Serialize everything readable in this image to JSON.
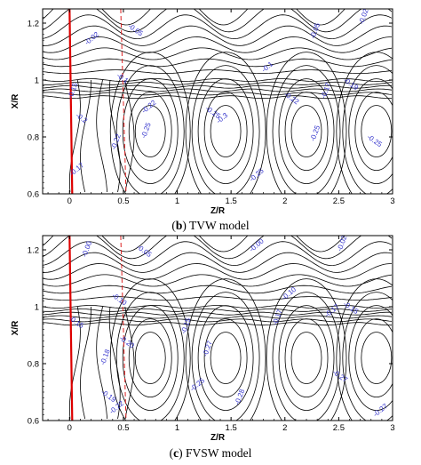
{
  "colors": {
    "line": "#000000",
    "label": "#3333cc",
    "blade": "#dd0000",
    "dashed": "#dd2222"
  },
  "chart_data": [
    {
      "type": "contour",
      "caption_letter": "b",
      "caption_text": "TVW model",
      "xlabel": "Z/R",
      "ylabel": "X/R",
      "xlim": [
        -0.25,
        3
      ],
      "ylim": [
        0.6,
        1.25
      ],
      "xticks": [
        0,
        0.5,
        1,
        1.5,
        2,
        2.5,
        3
      ],
      "xticklabels": [
        "0",
        "0.5",
        "1",
        "1.5",
        "2",
        "2.5",
        "3"
      ],
      "yticks": [
        0.6,
        0.8,
        1.0,
        1.2
      ],
      "yticklabels": [
        "0.6",
        "0.8",
        "1",
        "1.2"
      ],
      "blade_line_x": 0,
      "dashed_line_x": 0.5,
      "levels_upper": [
        -0.02,
        -0.05,
        -0.02,
        0,
        -0.02,
        -0.1
      ],
      "contour_labels": [
        {
          "text": "-0.02",
          "x": 2.75,
          "y": 1.22
        },
        {
          "text": "-0.05",
          "x": 0.6,
          "y": 1.17
        },
        {
          "text": "-0.02",
          "x": 0.22,
          "y": 1.14
        },
        {
          "text": "-0.05",
          "x": 2.3,
          "y": 1.17
        },
        {
          "text": "-0.1",
          "x": 0.48,
          "y": 1.0
        },
        {
          "text": "-0.1",
          "x": 1.85,
          "y": 1.04
        },
        {
          "text": "-0.15",
          "x": 0.05,
          "y": 0.96
        },
        {
          "text": "-0.2",
          "x": 0.1,
          "y": 0.86
        },
        {
          "text": "-0.17",
          "x": 0.08,
          "y": 0.68
        },
        {
          "text": "-0.17",
          "x": 2.4,
          "y": 0.96
        },
        {
          "text": "-0.19",
          "x": 2.6,
          "y": 0.98
        },
        {
          "text": "-0.22",
          "x": 0.75,
          "y": 0.9
        },
        {
          "text": "-0.25",
          "x": 0.73,
          "y": 0.82
        },
        {
          "text": "-0.25",
          "x": 1.32,
          "y": 0.88
        },
        {
          "text": "-0.3",
          "x": 1.43,
          "y": 0.86
        },
        {
          "text": "-0.25",
          "x": 2.3,
          "y": 0.81
        },
        {
          "text": "-0.25",
          "x": 2.82,
          "y": 0.78
        },
        {
          "text": "-0.25",
          "x": 1.75,
          "y": 0.66
        },
        {
          "text": "-0.22",
          "x": 0.45,
          "y": 0.78
        },
        {
          "text": "-0.22",
          "x": 2.05,
          "y": 0.93
        }
      ]
    },
    {
      "type": "contour",
      "caption_letter": "c",
      "caption_text": "FVSW model",
      "xlabel": "Z/R",
      "ylabel": "X/R",
      "xlim": [
        -0.25,
        3
      ],
      "ylim": [
        0.6,
        1.25
      ],
      "xticks": [
        0,
        0.5,
        1,
        1.5,
        2,
        2.5,
        3
      ],
      "xticklabels": [
        "0",
        "0.5",
        "1",
        "1.5",
        "2",
        "2.5",
        "3"
      ],
      "yticks": [
        0.6,
        0.8,
        1.0,
        1.2
      ],
      "yticklabels": [
        "0.6",
        "0.8",
        "1",
        "1.2"
      ],
      "blade_line_x": 0,
      "dashed_line_x": 0.5,
      "contour_labels": [
        {
          "text": "-0.00",
          "x": 0.18,
          "y": 1.2
        },
        {
          "text": "-0.05",
          "x": 0.68,
          "y": 1.19
        },
        {
          "text": "-0.00",
          "x": 1.75,
          "y": 1.21
        },
        {
          "text": "-0.02",
          "x": 2.55,
          "y": 1.22
        },
        {
          "text": "-0.10",
          "x": 0.45,
          "y": 1.02
        },
        {
          "text": "-0.10",
          "x": 2.05,
          "y": 1.04
        },
        {
          "text": "-0.15",
          "x": 1.1,
          "y": 0.93
        },
        {
          "text": "-0.15",
          "x": 2.6,
          "y": 0.99
        },
        {
          "text": "-0.17",
          "x": 2.45,
          "y": 0.98
        },
        {
          "text": "-0.18",
          "x": 0.35,
          "y": 0.82
        },
        {
          "text": "-0.20",
          "x": 0.52,
          "y": 0.87
        },
        {
          "text": "-0.25",
          "x": 1.2,
          "y": 0.72
        },
        {
          "text": "-0.27",
          "x": 1.3,
          "y": 0.85
        },
        {
          "text": "-0.27",
          "x": 2.5,
          "y": 0.75
        },
        {
          "text": "-0.27",
          "x": 2.9,
          "y": 0.63
        },
        {
          "text": "-0.28",
          "x": 1.6,
          "y": 0.68
        },
        {
          "text": "-0.19",
          "x": 0.35,
          "y": 0.68
        },
        {
          "text": "-0.22",
          "x": 0.45,
          "y": 0.64
        },
        {
          "text": "-0.17",
          "x": 1.95,
          "y": 0.96
        },
        {
          "text": "-0.15",
          "x": 0.05,
          "y": 0.94
        }
      ]
    }
  ]
}
